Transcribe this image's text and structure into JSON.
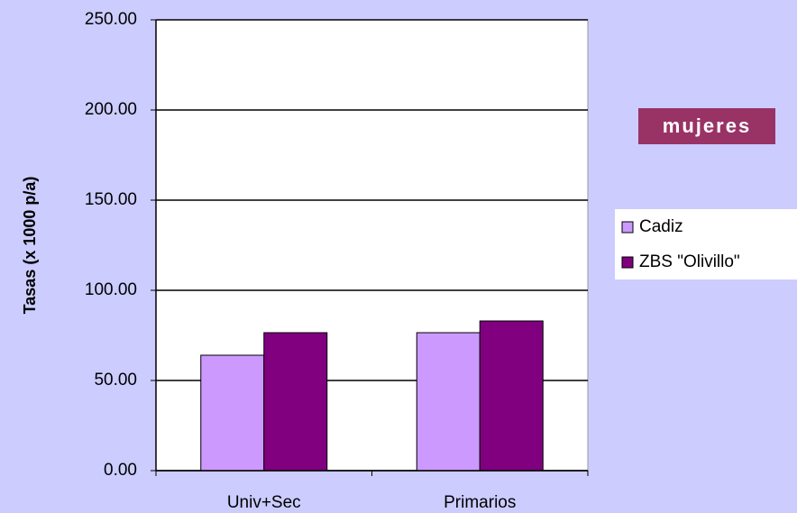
{
  "chart_data": {
    "type": "bar",
    "ylabel": "Tasas (x 1000 p/a)",
    "annotation": "mujeres",
    "categories": [
      "Univ+Sec",
      "Primarios"
    ],
    "series": [
      {
        "name": "Cadiz",
        "color": "#cc99ff",
        "values": [
          64,
          76.5
        ]
      },
      {
        "name": "ZBS \"Olivillo\"",
        "color": "#800080",
        "values": [
          76.5,
          83
        ]
      }
    ],
    "ylim": [
      0,
      250
    ],
    "yticks": [
      {
        "value": 0,
        "label": "0.00"
      },
      {
        "value": 50,
        "label": "50.00"
      },
      {
        "value": 100,
        "label": "100.00"
      },
      {
        "value": 150,
        "label": "150.00"
      },
      {
        "value": 200,
        "label": "200.00"
      },
      {
        "value": 250,
        "label": "250.00"
      }
    ],
    "grid": true,
    "legend": "right"
  }
}
